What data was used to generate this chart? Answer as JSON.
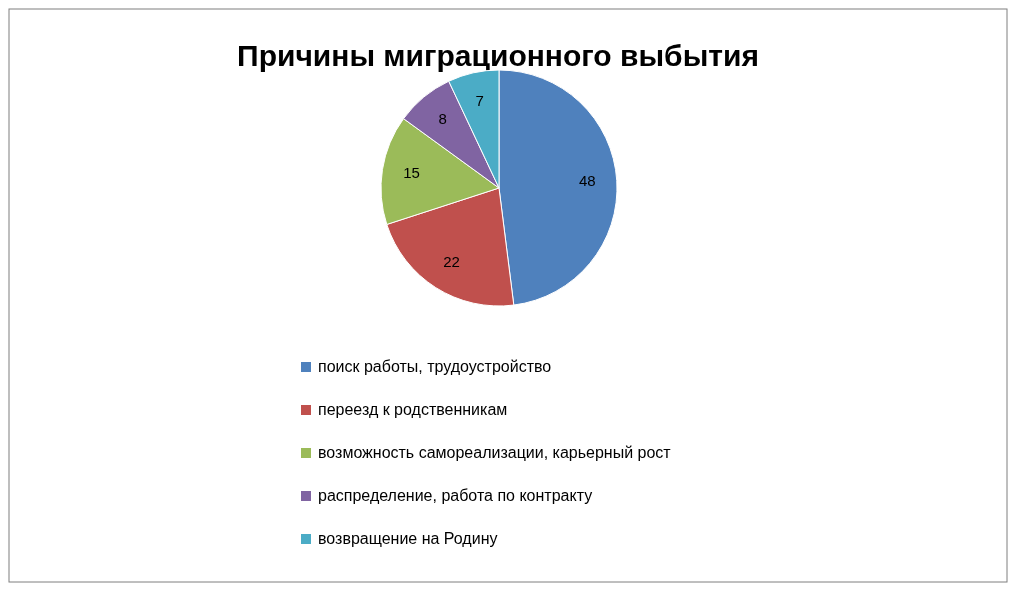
{
  "chart_data": {
    "type": "pie",
    "title": "Причины миграционного выбытия",
    "categories": [
      "поиск работы, трудоустройство",
      "переезд к родственникам",
      "возможность самореализации, карьерный рост",
      "распределение, работа по контракту",
      "возвращение на Родину"
    ],
    "values": [
      48,
      22,
      15,
      8,
      7
    ],
    "colors": [
      "#4f81bd",
      "#c0504d",
      "#9bbb59",
      "#8064a2",
      "#4bacc6"
    ],
    "data_labels": true,
    "legend": "bottom"
  }
}
